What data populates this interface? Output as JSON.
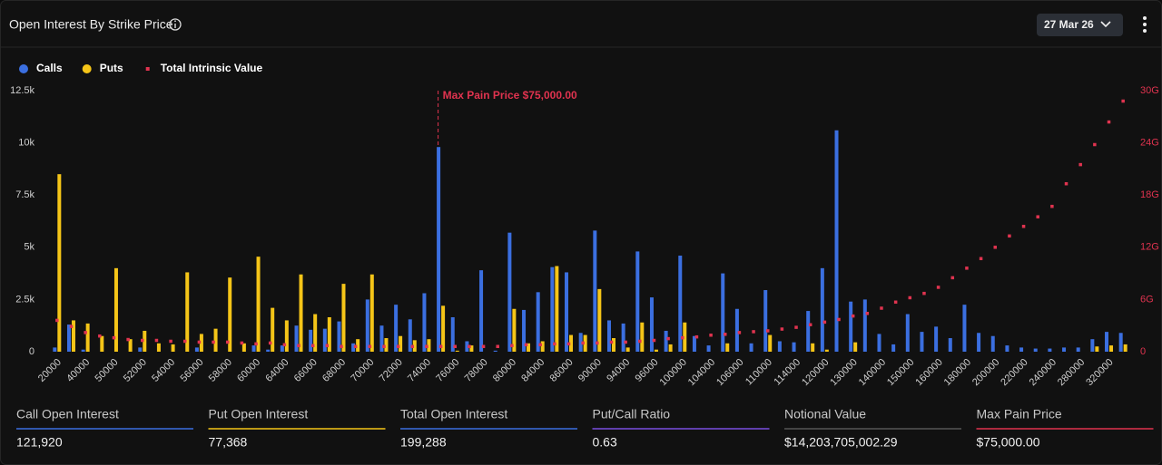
{
  "header": {
    "title": "Open Interest By Strike Price",
    "expiry": "27 Mar 26"
  },
  "chart_data": {
    "type": "bar",
    "categories": [
      20000,
      null,
      40000,
      null,
      50000,
      null,
      52000,
      null,
      54000,
      null,
      56000,
      null,
      58000,
      null,
      60000,
      null,
      64000,
      null,
      66000,
      null,
      68000,
      null,
      70000,
      null,
      72000,
      null,
      74000,
      null,
      76000,
      null,
      78000,
      null,
      80000,
      null,
      84000,
      null,
      86000,
      null,
      90000,
      null,
      94000,
      null,
      96000,
      null,
      100000,
      null,
      104000,
      null,
      106000,
      null,
      110000,
      null,
      114000,
      null,
      120000,
      null,
      130000,
      null,
      140000,
      null,
      150000,
      null,
      160000,
      null,
      180000,
      null,
      200000,
      null,
      220000,
      null,
      240000,
      null,
      280000,
      null,
      320000,
      null
    ],
    "series": [
      {
        "name": "Calls",
        "color": "#3b6fe0",
        "mark": "bar",
        "values": [
          0.2,
          1.3,
          0.1,
          0,
          0,
          0,
          0.2,
          0,
          0,
          0,
          0.2,
          0,
          0,
          0,
          0.3,
          0.1,
          0.3,
          1.25,
          1.05,
          1.1,
          1.45,
          0.4,
          2.5,
          1.25,
          2.25,
          1.55,
          2.8,
          9.8,
          1.65,
          0.5,
          3.9,
          0.05,
          5.7,
          2.0,
          2.85,
          4.05,
          3.8,
          0.9,
          5.8,
          1.5,
          1.35,
          4.8,
          2.6,
          1.0,
          4.6,
          0.75,
          0.3,
          3.75,
          2.05,
          0.4,
          2.95,
          0.5,
          0.45,
          1.95,
          4.0,
          10.6,
          2.4,
          2.5,
          0.85,
          0.35,
          1.8,
          0.95,
          1.2,
          0.65,
          2.25,
          0.9,
          0.75,
          0.3,
          0.2,
          0.15,
          0.15,
          0.2,
          0.2,
          0.6,
          0.95,
          0.9
        ]
      },
      {
        "name": "Puts",
        "color": "#f5c518",
        "mark": "bar",
        "values": [
          8.5,
          1.5,
          1.35,
          0.75,
          4.0,
          0.6,
          1.0,
          0.4,
          0.35,
          3.8,
          0.85,
          1.1,
          3.55,
          0.4,
          4.55,
          2.1,
          1.5,
          3.7,
          1.8,
          1.65,
          3.25,
          0.6,
          3.7,
          0.65,
          0.75,
          0.55,
          0.6,
          2.2,
          0.05,
          0.3,
          0,
          0,
          2.05,
          0.4,
          0.5,
          4.1,
          0.8,
          0.8,
          3.0,
          0.65,
          0.2,
          1.4,
          0.1,
          0.35,
          1.4,
          0,
          0,
          0.4,
          0,
          0,
          0.8,
          0,
          0,
          0.4,
          0.1,
          0,
          0.45,
          0,
          0,
          0,
          0,
          0,
          0,
          0,
          0,
          0,
          0,
          0,
          0,
          0,
          0,
          0,
          0,
          0.25,
          0.3,
          0.35
        ]
      },
      {
        "name": "Total Intrinsic Value",
        "color": "#e0334f",
        "mark": "dot",
        "axis": "y2",
        "values": [
          3.6,
          2.9,
          2.2,
          1.8,
          1.6,
          1.4,
          1.3,
          1.3,
          1.2,
          1.2,
          1.1,
          1.1,
          1.1,
          1.0,
          0.9,
          1.0,
          0.8,
          0.7,
          0.7,
          0.7,
          0.6,
          0.6,
          0.6,
          0.6,
          0.6,
          0.6,
          0.6,
          0.6,
          0.6,
          0.6,
          0.6,
          0.6,
          0.7,
          0.8,
          0.8,
          0.9,
          0.9,
          1.0,
          1.0,
          1.1,
          1.1,
          1.2,
          1.3,
          1.5,
          1.6,
          1.7,
          1.9,
          2.0,
          2.2,
          2.3,
          2.4,
          2.6,
          2.8,
          3.1,
          3.4,
          3.7,
          4.1,
          4.4,
          5.0,
          5.7,
          6.2,
          6.7,
          7.4,
          8.5,
          9.6,
          10.7,
          12.0,
          13.3,
          14.4,
          15.5,
          16.7,
          19.3,
          21.5,
          23.8,
          26.4,
          28.8
        ]
      }
    ],
    "ylim": [
      0,
      12.5
    ],
    "yticks": [
      0,
      {
        "value": 2.5,
        "label": "2.5k"
      },
      {
        "value": 5,
        "label": "5k"
      },
      {
        "value": 7.5,
        "label": "7.5k"
      },
      {
        "value": 10,
        "label": "10k"
      },
      {
        "value": 12.5,
        "label": "12.5k"
      }
    ],
    "y2lim": [
      0,
      30
    ],
    "y2ticks": [
      0,
      {
        "value": 6,
        "label": "6G"
      },
      {
        "value": 12,
        "label": "12G"
      },
      {
        "value": 18,
        "label": "18G"
      },
      {
        "value": 24,
        "label": "24G"
      },
      {
        "value": 30,
        "label": "30G"
      }
    ],
    "y2color": "#e0334f",
    "grid": false,
    "legend": "top-left",
    "annotation": {
      "text": "Max Pain Price $75,000.00",
      "x": 75000,
      "color": "#e0334f"
    }
  },
  "stats": [
    {
      "label": "Call Open Interest",
      "value": "121,920",
      "color": "#3b6fe0"
    },
    {
      "label": "Put Open Interest",
      "value": "77,368",
      "color": "#f5c518"
    },
    {
      "label": "Total Open Interest",
      "value": "199,288",
      "color": "#3b6fe0"
    },
    {
      "label": "Put/Call Ratio",
      "value": "0.63",
      "color": "#7b4fe0"
    },
    {
      "label": "Notional Value",
      "value": "$14,203,705,002.29",
      "color": "#555555"
    },
    {
      "label": "Max Pain Price",
      "value": "$75,000.00",
      "color": "#e0334f"
    }
  ]
}
